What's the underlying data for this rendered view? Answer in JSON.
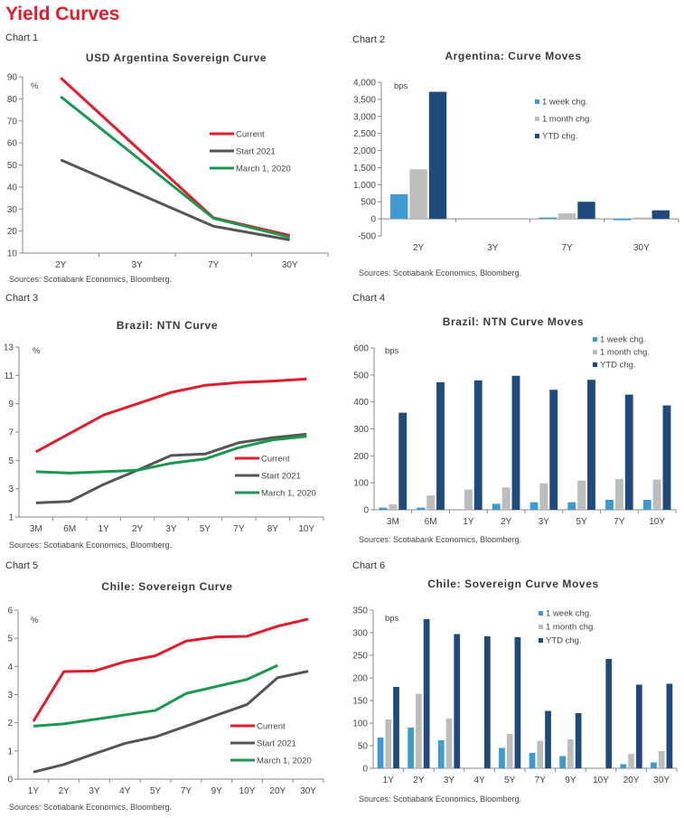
{
  "page": {
    "title": "Yield Curves"
  },
  "colors": {
    "current": "#e31c2d",
    "start2021": "#555555",
    "march2020": "#1a9850",
    "week": "#3e9bd0",
    "month": "#bdbdbd",
    "ytd": "#1f4a7e"
  },
  "chart_data": [
    {
      "id": "chart1",
      "label": "Chart 1",
      "type": "line",
      "title": "USD Argentina Sovereign Curve",
      "unit": "%",
      "categories": [
        "2Y",
        "3Y",
        "7Y",
        "30Y"
      ],
      "ylim": [
        10,
        90
      ],
      "yticks": [
        10,
        20,
        30,
        40,
        50,
        60,
        70,
        80,
        90
      ],
      "legend_position": "center-right",
      "series": [
        {
          "name": "Current",
          "color_key": "current",
          "values": [
            89.5,
            null,
            26,
            18
          ]
        },
        {
          "name": "Start 2021",
          "color_key": "start2021",
          "values": [
            52.3,
            null,
            22.2,
            16
          ]
        },
        {
          "name": "March 1, 2020",
          "color_key": "march2020",
          "values": [
            81,
            null,
            25.8,
            17.2
          ]
        }
      ],
      "source": "Sources: Scotiabank Economics, Bloomberg."
    },
    {
      "id": "chart2",
      "label": "Chart 2",
      "type": "bar",
      "title": "Argentina: Curve Moves",
      "unit": "bps",
      "categories": [
        "2Y",
        "3Y",
        "7Y",
        "30Y"
      ],
      "ylim": [
        -500,
        4000
      ],
      "yticks": [
        -500,
        0,
        500,
        1000,
        1500,
        2000,
        2500,
        3000,
        3500,
        4000
      ],
      "ytick_labels": [
        "-500",
        "0",
        "500",
        "1,000",
        "1,500",
        "2,000",
        "2,500",
        "3,000",
        "3,500",
        "4,000"
      ],
      "legend_position": "top-right",
      "series": [
        {
          "name": "1 week chg.",
          "color_key": "week",
          "values": [
            720,
            0,
            30,
            -40
          ]
        },
        {
          "name": "1 month chg.",
          "color_key": "month",
          "values": [
            1450,
            0,
            160,
            40
          ]
        },
        {
          "name": "YTD chg.",
          "color_key": "ytd",
          "values": [
            3720,
            0,
            500,
            250
          ]
        }
      ],
      "source": "Sources: Scotiabank Economics, Bloomberg."
    },
    {
      "id": "chart3",
      "label": "Chart 3",
      "type": "line",
      "title": "Brazil: NTN Curve",
      "unit": "%",
      "categories": [
        "3M",
        "6M",
        "1Y",
        "2Y",
        "3Y",
        "5Y",
        "7Y",
        "8Y",
        "10Y"
      ],
      "ylim": [
        1,
        13
      ],
      "yticks": [
        1,
        3,
        5,
        7,
        9,
        11,
        13
      ],
      "legend_position": "bottom-right",
      "series": [
        {
          "name": "Current",
          "color_key": "current",
          "values": [
            5.6,
            6.9,
            8.2,
            9.0,
            9.8,
            10.3,
            10.5,
            10.6,
            10.75
          ]
        },
        {
          "name": "Start 2021",
          "color_key": "start2021",
          "values": [
            2.0,
            2.1,
            3.3,
            4.3,
            5.35,
            5.45,
            6.25,
            6.6,
            6.85
          ]
        },
        {
          "name": "March 1, 2020",
          "color_key": "march2020",
          "values": [
            4.2,
            4.1,
            4.2,
            4.3,
            4.8,
            5.1,
            5.9,
            6.45,
            6.7
          ]
        }
      ],
      "source": "Sources: Scotiabank Economics, Bloomberg."
    },
    {
      "id": "chart4",
      "label": "Chart 4",
      "type": "bar",
      "title": "Brazil: NTN Curve Moves",
      "unit": "bps",
      "categories": [
        "3M",
        "6M",
        "1Y",
        "2Y",
        "3Y",
        "5Y",
        "7Y",
        "10Y"
      ],
      "ylim": [
        0,
        600
      ],
      "yticks": [
        0,
        100,
        200,
        300,
        400,
        500,
        600
      ],
      "ytick_labels": [
        "0",
        "100",
        "200",
        "300",
        "400",
        "500",
        "600"
      ],
      "legend_position": "top-right",
      "series": [
        {
          "name": "1 week chg.",
          "color_key": "week",
          "values": [
            8,
            8,
            0,
            22,
            28,
            28,
            37,
            37
          ]
        },
        {
          "name": "1 month chg.",
          "color_key": "month",
          "values": [
            20,
            53,
            75,
            83,
            98,
            108,
            114,
            112
          ]
        },
        {
          "name": "YTD chg.",
          "color_key": "ytd",
          "values": [
            360,
            473,
            480,
            497,
            445,
            482,
            427,
            387
          ]
        }
      ],
      "source": "Sources: Scotiabank Economics, Bloomberg."
    },
    {
      "id": "chart5",
      "label": "Chart 5",
      "type": "line",
      "title": "Chile: Sovereign Curve",
      "unit": "%",
      "categories": [
        "1Y",
        "2Y",
        "3Y",
        "4Y",
        "5Y",
        "7Y",
        "9Y",
        "10Y",
        "20Y",
        "30Y"
      ],
      "ylim": [
        0,
        6
      ],
      "yticks": [
        0,
        1,
        2,
        3,
        4,
        5,
        6
      ],
      "legend_position": "bottom-right",
      "series": [
        {
          "name": "Current",
          "color_key": "current",
          "values": [
            2.05,
            3.82,
            3.84,
            4.17,
            4.38,
            4.9,
            5.05,
            5.07,
            5.43,
            5.68
          ]
        },
        {
          "name": "Start 2021",
          "color_key": "start2021",
          "values": [
            0.25,
            0.52,
            0.9,
            1.27,
            1.5,
            1.88,
            2.27,
            2.65,
            3.6,
            3.83
          ]
        },
        {
          "name": "March 1, 2020",
          "color_key": "march2020",
          "values": [
            1.88,
            1.96,
            2.12,
            2.28,
            2.44,
            3.04,
            3.29,
            3.54,
            4.04,
            null
          ]
        }
      ],
      "source": "Sources: Scotiabank Economics, Bloomberg."
    },
    {
      "id": "chart6",
      "label": "Chart 6",
      "type": "bar",
      "title": "Chile: Sovereign Curve Moves",
      "unit": "bps",
      "categories": [
        "1Y",
        "2Y",
        "3Y",
        "4Y",
        "5Y",
        "7Y",
        "9Y",
        "10Y",
        "20Y",
        "30Y"
      ],
      "ylim": [
        0,
        350
      ],
      "yticks": [
        0,
        50,
        100,
        150,
        200,
        250,
        300,
        350
      ],
      "ytick_labels": [
        "0",
        "50",
        "100",
        "150",
        "200",
        "250",
        "300",
        "350"
      ],
      "legend_position": "top-right",
      "series": [
        {
          "name": "1 week chg.",
          "color_key": "week",
          "values": [
            68,
            90,
            62,
            0,
            45,
            34,
            27,
            0,
            9,
            13
          ]
        },
        {
          "name": "1 month chg.",
          "color_key": "month",
          "values": [
            108,
            165,
            110,
            0,
            76,
            61,
            64,
            0,
            32,
            38
          ]
        },
        {
          "name": "YTD chg.",
          "color_key": "ytd",
          "values": [
            180,
            330,
            297,
            292,
            290,
            127,
            122,
            242,
            185,
            187
          ]
        }
      ],
      "source": "Sources: Scotiabank Economics, Bloomberg."
    }
  ]
}
